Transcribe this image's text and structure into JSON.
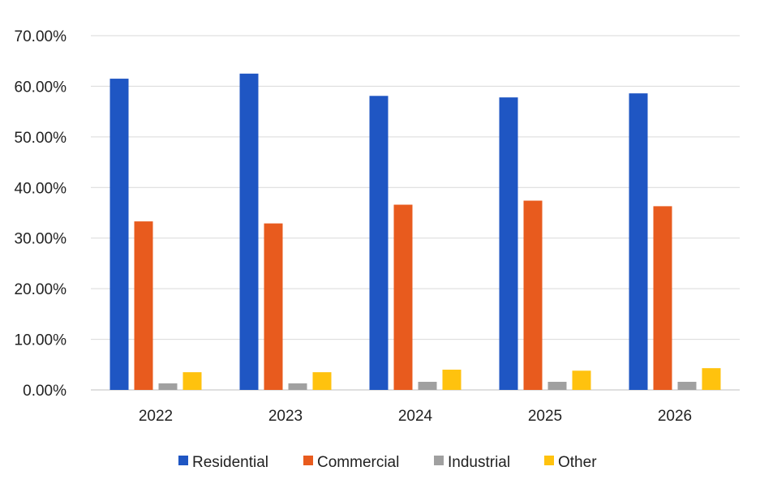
{
  "chart_data": {
    "type": "bar",
    "categories": [
      "2022",
      "2023",
      "2024",
      "2025",
      "2026"
    ],
    "series": [
      {
        "name": "Residential",
        "color": "#1f56c3",
        "values": [
          61.5,
          62.5,
          58.1,
          57.8,
          58.6
        ]
      },
      {
        "name": "Commercial",
        "color": "#e85b1e",
        "values": [
          33.3,
          32.9,
          36.6,
          37.4,
          36.3
        ]
      },
      {
        "name": "Industrial",
        "color": "#a0a0a0",
        "values": [
          1.3,
          1.3,
          1.6,
          1.6,
          1.6
        ]
      },
      {
        "name": "Other",
        "color": "#ffc20e",
        "values": [
          3.5,
          3.5,
          4.0,
          3.8,
          4.3
        ]
      }
    ],
    "ylim": [
      0,
      70
    ],
    "yticks": [
      0,
      10,
      20,
      30,
      40,
      50,
      60,
      70
    ],
    "ytick_labels": [
      "0.00%",
      "10.00%",
      "20.00%",
      "30.00%",
      "40.00%",
      "50.00%",
      "60.00%",
      "70.00%"
    ],
    "grid": true,
    "legend_position": "bottom",
    "title": "",
    "xlabel": "",
    "ylabel": ""
  }
}
